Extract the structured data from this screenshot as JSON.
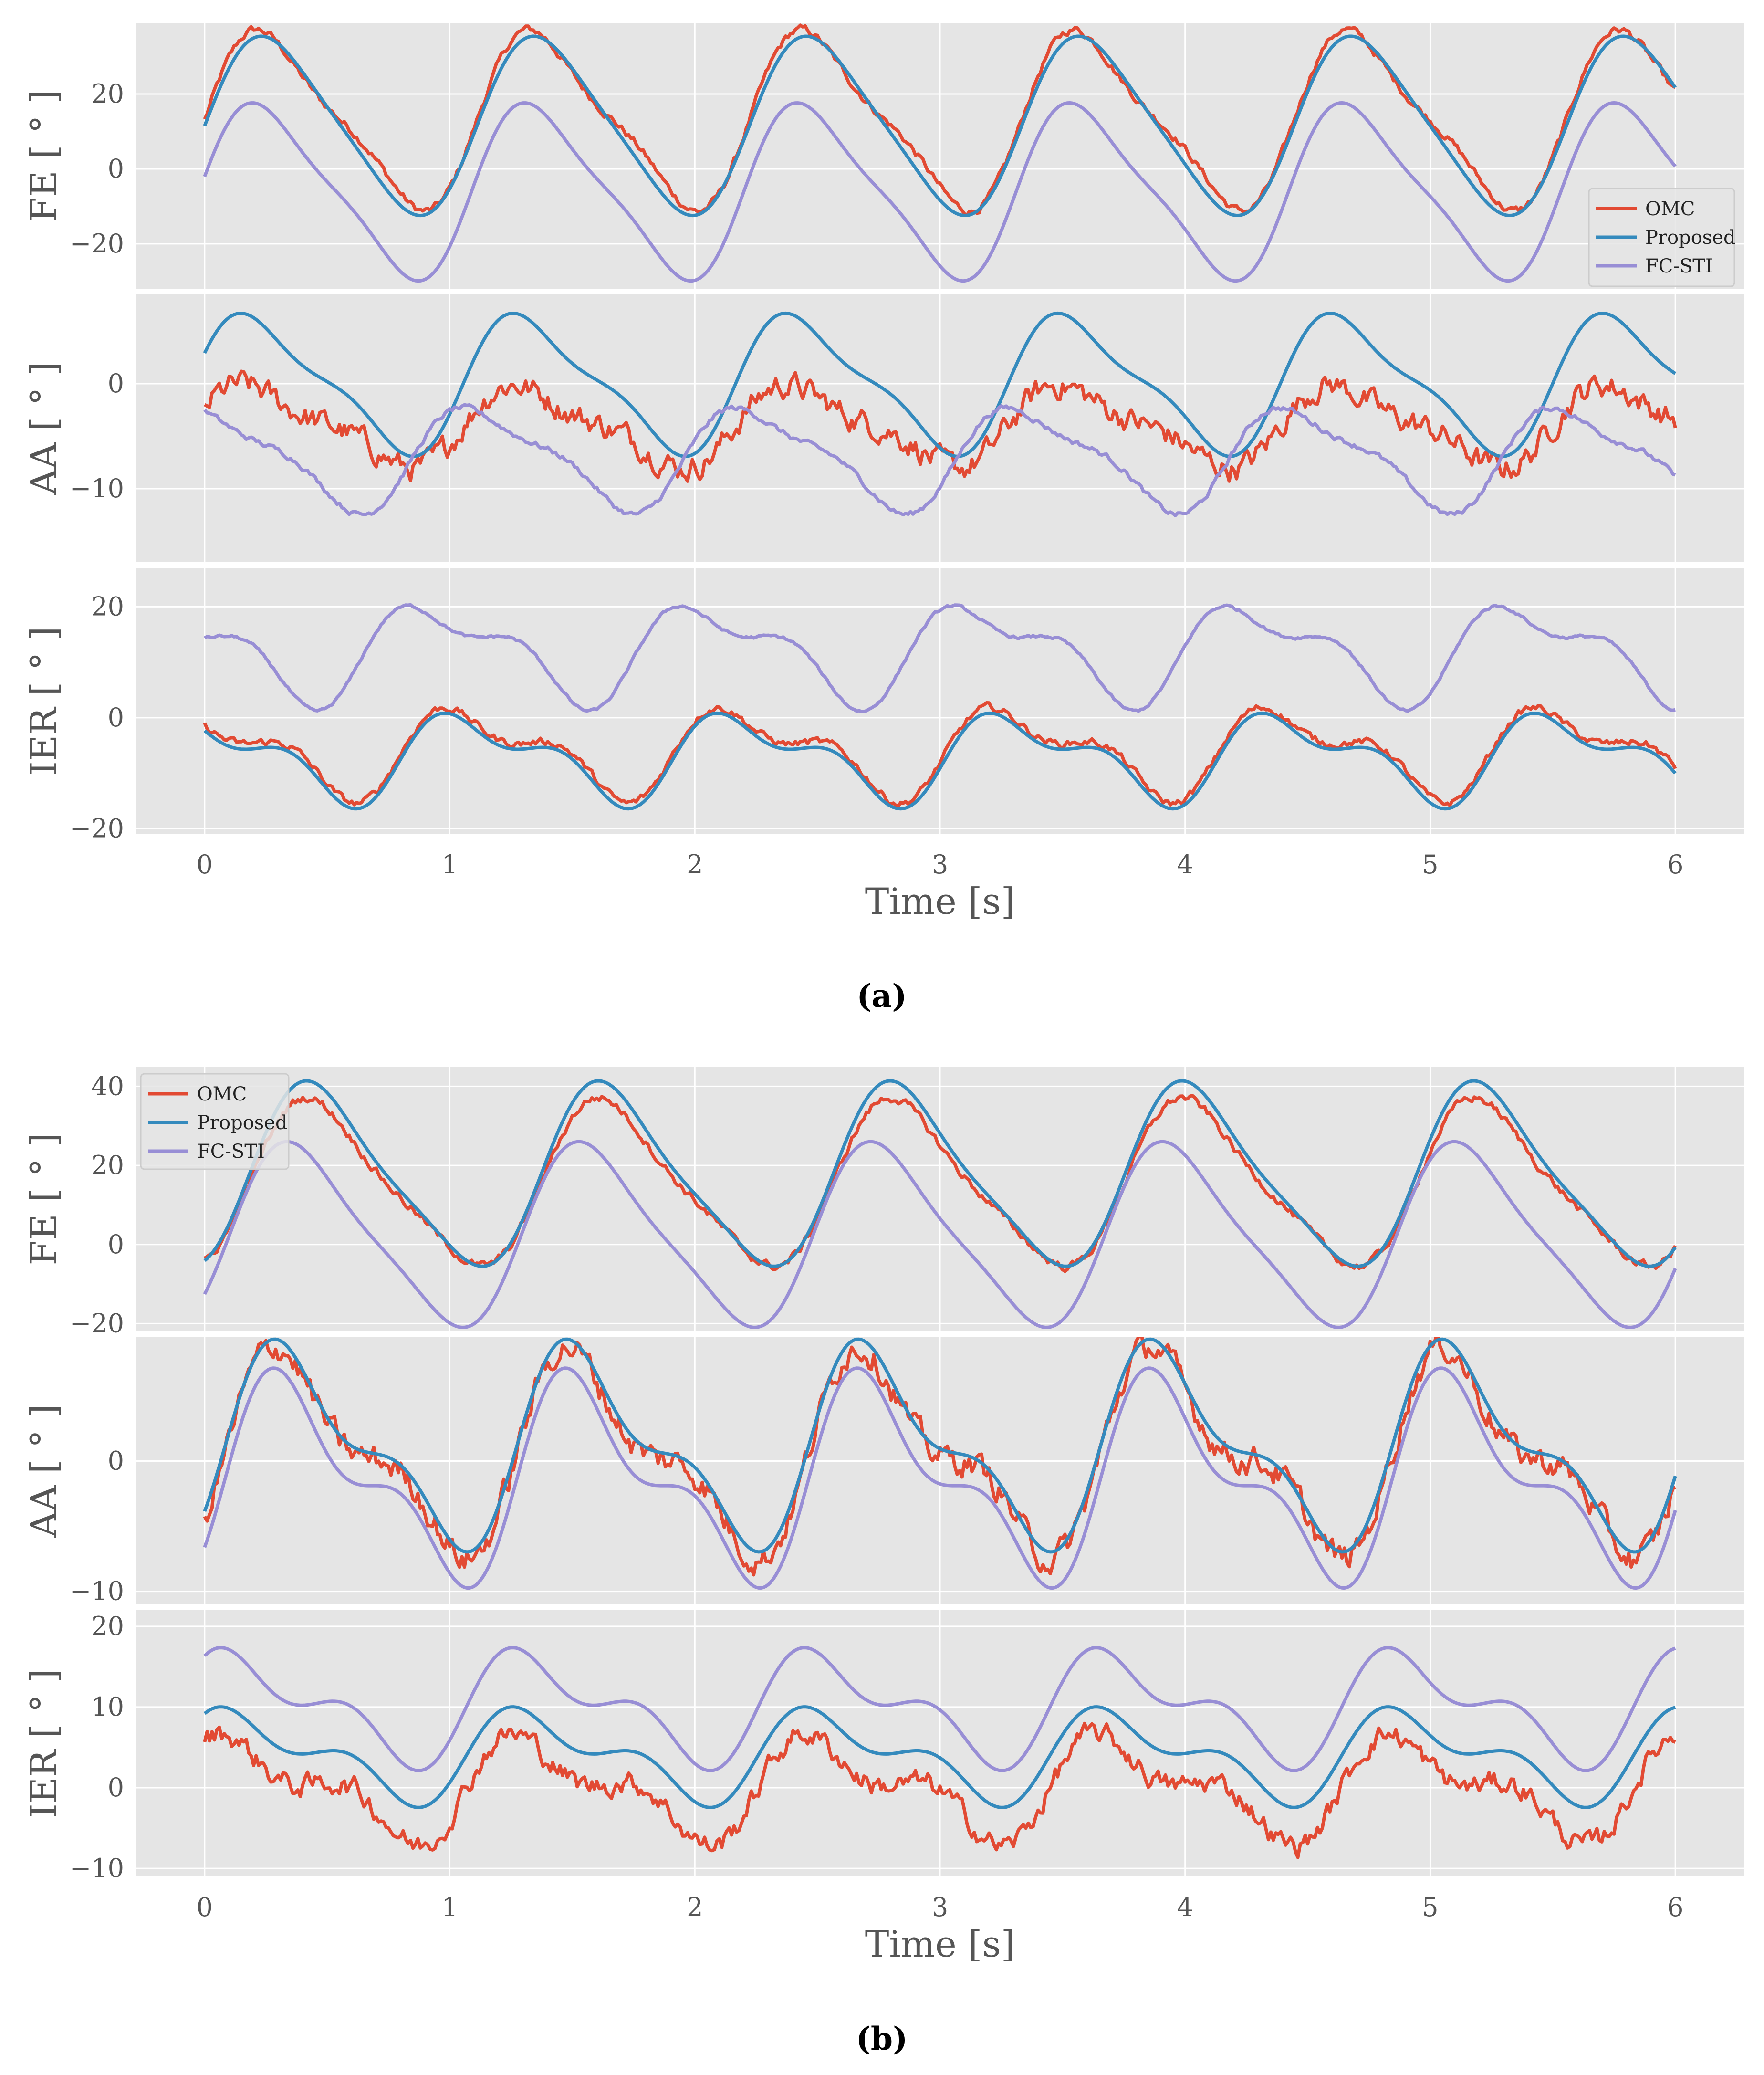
{
  "figure": {
    "captions": [
      "(a)",
      "(b)"
    ],
    "caption_bold": [
      "a",
      "b"
    ]
  },
  "colors": {
    "OMC": "#e24a33",
    "Proposed": "#348abd",
    "FC-STI": "#988ed5",
    "panel_bg": "#e5e5e5",
    "grid": "#ffffff"
  },
  "chart_data": [
    {
      "type": "line",
      "figure": "a",
      "xlabel": "Time [s]",
      "xlim": [
        -0.28,
        6.28
      ],
      "xticks": [
        0,
        1,
        2,
        3,
        4,
        5,
        6
      ],
      "legend": {
        "entries": [
          "OMC",
          "Proposed",
          "FC-STI"
        ],
        "placement": "right"
      },
      "subplots": [
        {
          "ylabel": "FE [ ° ]",
          "ylim": [
            -32,
            39
          ],
          "yticks": [
            -20,
            0,
            20
          ],
          "series": [
            {
              "name": "OMC",
              "base": 13,
              "amp": 22,
              "freq": 0.9,
              "phase": 0.0,
              "noise": 0.8,
              "h2": 0.25
            },
            {
              "name": "Proposed",
              "base": 11.5,
              "amp": 23,
              "freq": 0.9,
              "phase": 0.0,
              "noise": 0.0,
              "h2": 0.15
            },
            {
              "name": "FC-STI",
              "base": -6,
              "amp": 22,
              "freq": 0.9,
              "phase": 0.12,
              "noise": 0.0,
              "h2": 0.22
            }
          ]
        },
        {
          "ylabel": "AA [ ° ]",
          "ylim": [
            -17,
            8.5
          ],
          "yticks": [
            -10,
            0
          ],
          "series": [
            {
              "name": "OMC",
              "base": -4,
              "amp": 3.5,
              "freq": 0.9,
              "phase": 0.3,
              "noise": 0.9,
              "h2": 0.3
            },
            {
              "name": "Proposed",
              "base": 0,
              "amp": 6,
              "freq": 0.9,
              "phase": 0.3,
              "noise": 0.0,
              "h2": 0.3
            },
            {
              "name": "FC-STI",
              "base": -7,
              "amp": 4.5,
              "freq": 0.9,
              "phase": 1.4,
              "noise": 0.2,
              "h2": 0.3
            }
          ]
        },
        {
          "ylabel": "IER [ ° ]",
          "ylim": [
            -21,
            27
          ],
          "yticks": [
            -20,
            0,
            20
          ],
          "series": [
            {
              "name": "OMC",
              "base": -6,
              "amp": 6.5,
              "freq": 0.9,
              "phase": 1.6,
              "noise": 0.5,
              "h2": 0.55
            },
            {
              "name": "Proposed",
              "base": -7,
              "amp": 6.5,
              "freq": 0.9,
              "phase": 1.6,
              "noise": 0.0,
              "h2": 0.55
            },
            {
              "name": "FC-STI",
              "base": 12,
              "amp": 7.5,
              "freq": 0.9,
              "phase": 2.4,
              "noise": 0.2,
              "h2": 0.5
            }
          ]
        }
      ]
    },
    {
      "type": "line",
      "figure": "b",
      "xlabel": "Time [s]",
      "xlim": [
        -0.28,
        6.28
      ],
      "xticks": [
        0,
        1,
        2,
        3,
        4,
        5,
        6
      ],
      "legend": {
        "entries": [
          "OMC",
          "Proposed",
          "FC-STI"
        ],
        "placement": "top-left"
      },
      "subplots": [
        {
          "ylabel": "FE [ ° ]",
          "ylim": [
            -22,
            45
          ],
          "yticks": [
            -20,
            0,
            20,
            40
          ],
          "series": [
            {
              "name": "OMC",
              "base": 15,
              "amp": 20,
              "freq": 0.84,
              "phase": -0.9,
              "noise": 0.8,
              "h2": 0.2
            },
            {
              "name": "Proposed",
              "base": 17,
              "amp": 22,
              "freq": 0.84,
              "phase": -0.9,
              "noise": 0.0,
              "h2": 0.2
            },
            {
              "name": "FC-STI",
              "base": 2,
              "amp": 22,
              "freq": 0.84,
              "phase": -0.5,
              "noise": 0.0,
              "h2": 0.2
            }
          ]
        },
        {
          "ylabel": "AA [ ° ]",
          "ylim": [
            -11,
            9.5
          ],
          "yticks": [
            -10,
            0
          ],
          "series": [
            {
              "name": "OMC",
              "base": 0.5,
              "amp": 6.5,
              "freq": 0.84,
              "phase": -0.4,
              "noise": 0.8,
              "h2": 0.45
            },
            {
              "name": "Proposed",
              "base": 1,
              "amp": 6.5,
              "freq": 0.84,
              "phase": -0.4,
              "noise": 0.0,
              "h2": 0.45
            },
            {
              "name": "FC-STI",
              "base": -1.5,
              "amp": 6.5,
              "freq": 0.84,
              "phase": -0.4,
              "noise": 0.0,
              "h2": 0.5
            }
          ]
        },
        {
          "ylabel": "IER [ ° ]",
          "ylim": [
            -11,
            22
          ],
          "yticks": [
            -10,
            0,
            10,
            20
          ],
          "series": [
            {
              "name": "OMC",
              "base": 0,
              "amp": 5,
              "freq": 0.84,
              "phase": 0.6,
              "noise": 1.0,
              "h2": 0.6
            },
            {
              "name": "Proposed",
              "base": 4,
              "amp": 4.5,
              "freq": 0.84,
              "phase": 0.6,
              "noise": 0.0,
              "h2": 0.6
            },
            {
              "name": "FC-STI",
              "base": 10,
              "amp": 5.5,
              "freq": 0.84,
              "phase": 0.6,
              "noise": 0.0,
              "h2": 0.6
            }
          ]
        }
      ]
    }
  ]
}
